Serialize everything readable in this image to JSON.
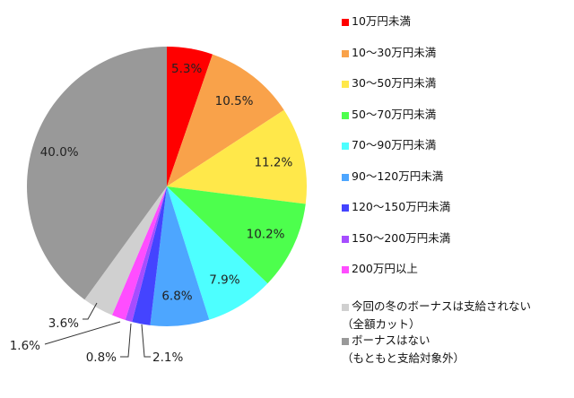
{
  "chart_data": {
    "type": "pie",
    "title": "",
    "start": "top",
    "direction": "clockwise",
    "legend_position": "right",
    "categories": [
      "10万円未満",
      "10〜30万円未満",
      "30〜50万円未満",
      "50〜70万円未満",
      "70〜90万円未満",
      "90〜120万円未満",
      "120〜150万円未満",
      "150〜200万円未満",
      "200万円以上",
      "今回の冬のボーナスは支給されない（全額カット）",
      "ボーナスはない（もともと支給対象外）"
    ],
    "legend_lines": [
      [
        "10万円未満"
      ],
      [
        "10〜30万円未満"
      ],
      [
        "30〜50万円未満"
      ],
      [
        "50〜70万円未満"
      ],
      [
        "70〜90万円未満"
      ],
      [
        "90〜120万円未満"
      ],
      [
        "120〜150万円未満"
      ],
      [
        "150〜200万円未満"
      ],
      [
        "200万円以上"
      ],
      [
        "今回の冬のボーナスは支給されない",
        "（全額カット）"
      ],
      [
        "ボーナスはない",
        "（もともと支給対象外）"
      ]
    ],
    "values": [
      5.3,
      10.5,
      11.2,
      10.2,
      7.9,
      6.8,
      2.1,
      0.8,
      1.6,
      3.6,
      40.0
    ],
    "labels": [
      "5.3%",
      "10.5%",
      "11.2%",
      "10.2%",
      "7.9%",
      "6.8%",
      "2.1%",
      "0.8%",
      "1.6%",
      "3.6%",
      "40.0%"
    ],
    "colors": [
      "#ff0000",
      "#f9a24a",
      "#ffe84a",
      "#4dff4d",
      "#4dffff",
      "#4da6ff",
      "#4444ff",
      "#a64dff",
      "#ff4dff",
      "#d0d0d0",
      "#999999"
    ]
  }
}
